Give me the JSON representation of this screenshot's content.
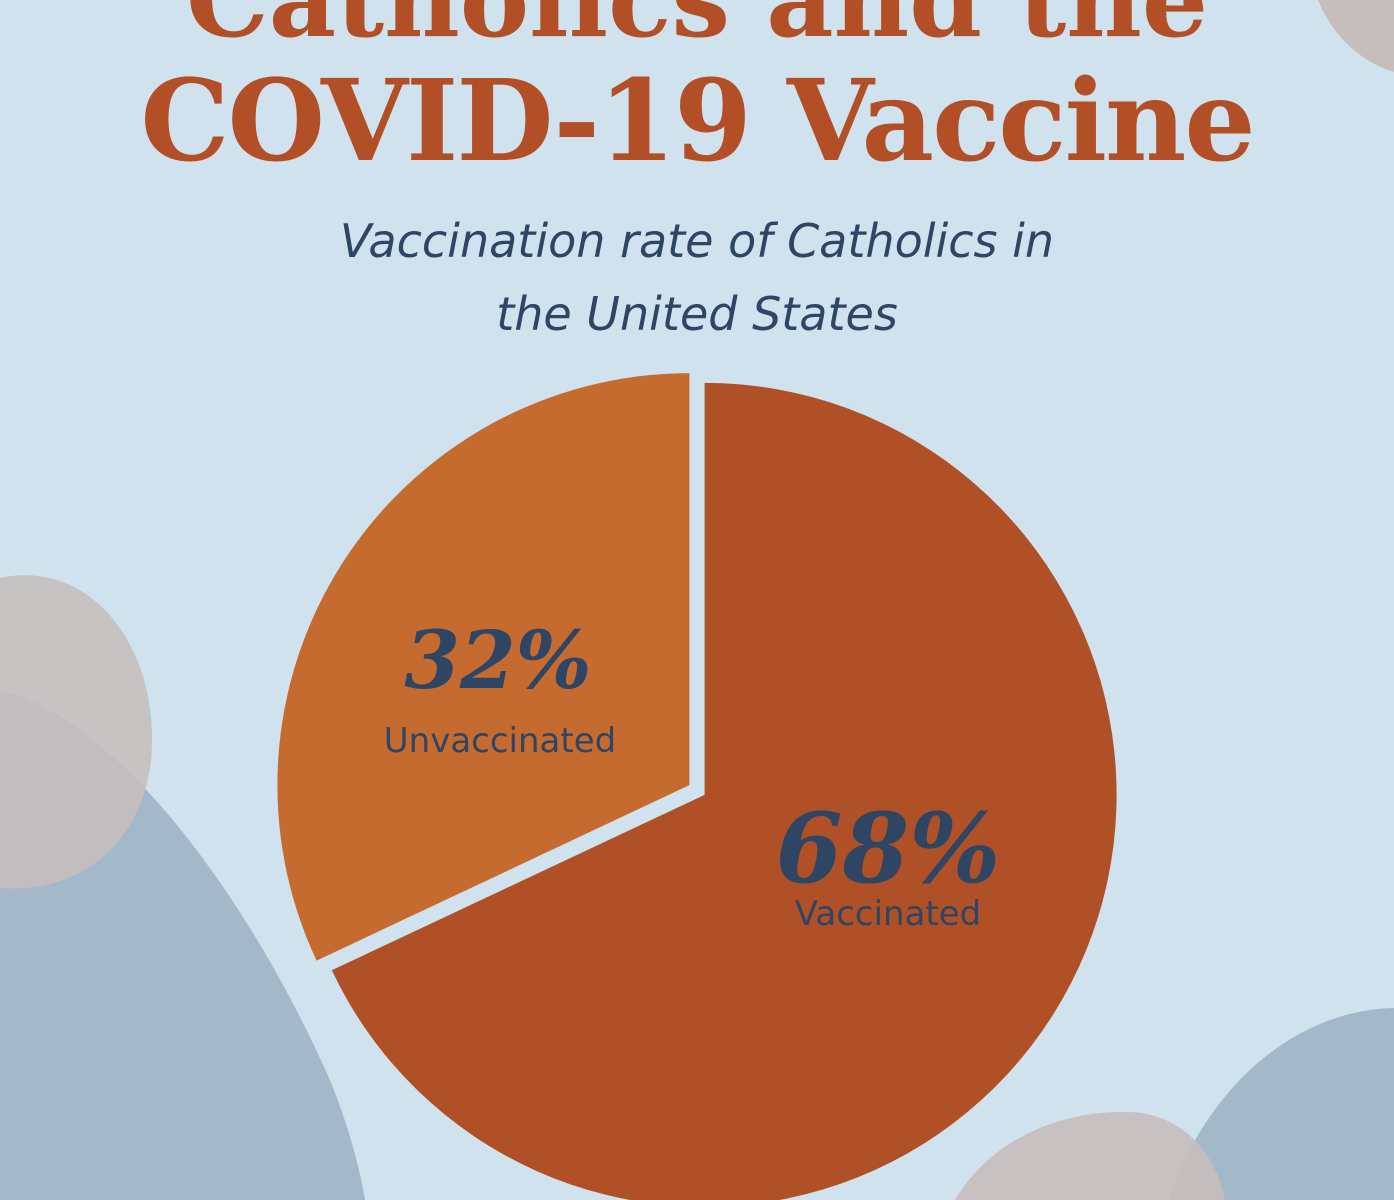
{
  "header": {
    "title_line_1": "Catholics and the",
    "title_line_2": "COVID-19 Vaccine",
    "subtitle_line_1": "Vaccination rate of Catholics in",
    "subtitle_line_2": "the United States"
  },
  "colors": {
    "background": "#cfe2ee",
    "title": "#b34f26",
    "vaccinated_slice": "#b05026",
    "unvaccinated_slice": "#c66b30",
    "label_text": "#2e4564",
    "blob_blue": "#a3b8c8",
    "blob_taupe": "#c9c0bf"
  },
  "chart_data": {
    "type": "pie",
    "title": "Vaccination rate of Catholics in the United States",
    "slices": [
      {
        "label": "Vaccinated",
        "value": 68,
        "value_label": "68%"
      },
      {
        "label": "Unvaccinated",
        "value": 32,
        "value_label": "32%"
      }
    ]
  }
}
